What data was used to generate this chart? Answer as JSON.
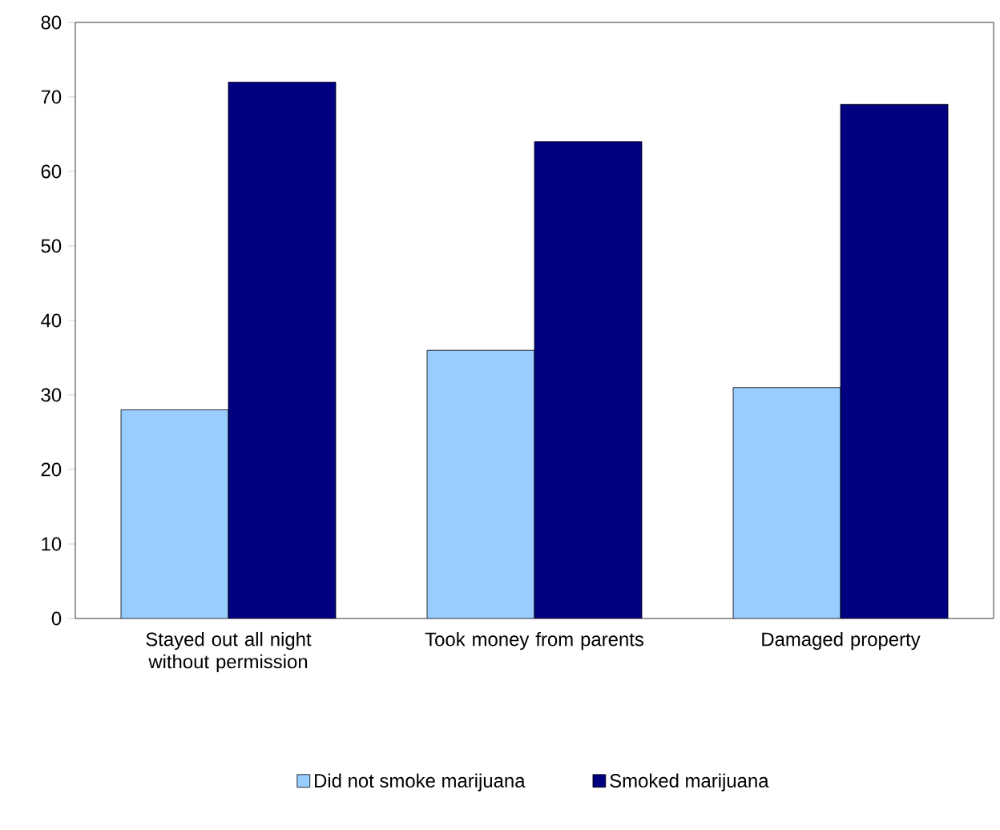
{
  "chart_data": {
    "type": "bar",
    "categories": [
      "Stayed out all night without permission",
      "Took money from parents",
      "Damaged property"
    ],
    "series": [
      {
        "name": "Did not smoke marijuana",
        "color": "#99ccff",
        "values": [
          28,
          36,
          31
        ]
      },
      {
        "name": "Smoked marijuana",
        "color": "#000080",
        "values": [
          72,
          64,
          69
        ]
      }
    ],
    "ylim": [
      0,
      80
    ],
    "yticks": [
      0,
      10,
      20,
      30,
      40,
      50,
      60,
      70,
      80
    ],
    "legend": "bottom"
  }
}
